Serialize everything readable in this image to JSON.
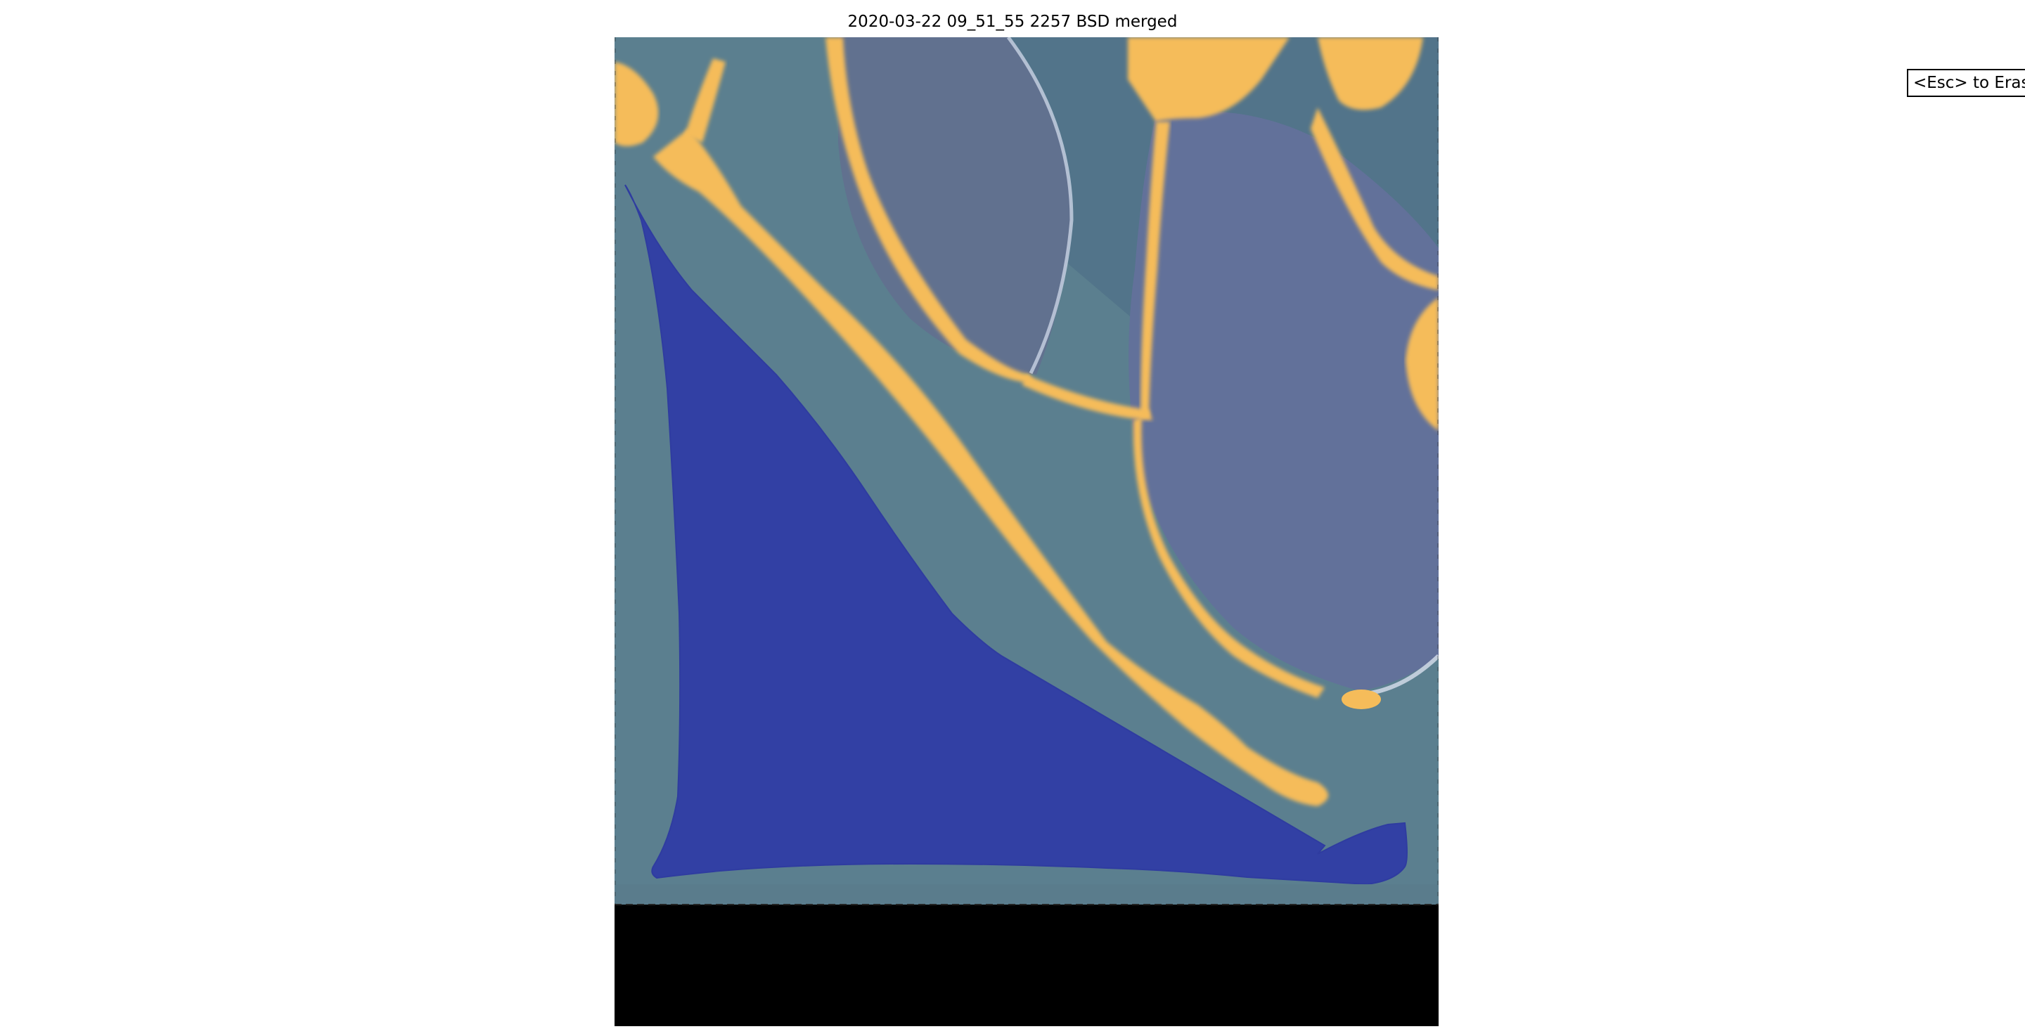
{
  "figure": {
    "title": "2020-03-22 09_51_55 2257 BSD merged"
  },
  "hint": {
    "erase_label": "<Esc> to Erase"
  },
  "colors": {
    "background": "#ffffff",
    "image_base": "#5b7f8f",
    "plate_interior": "#5f7393",
    "mask_yellow": "#f5bc5a",
    "selection_blue": "#3240a4",
    "padding_black": "#000000"
  },
  "layers": {
    "segmentation_mask": "mask-yellow",
    "selection_polygon": "selection-blue"
  }
}
